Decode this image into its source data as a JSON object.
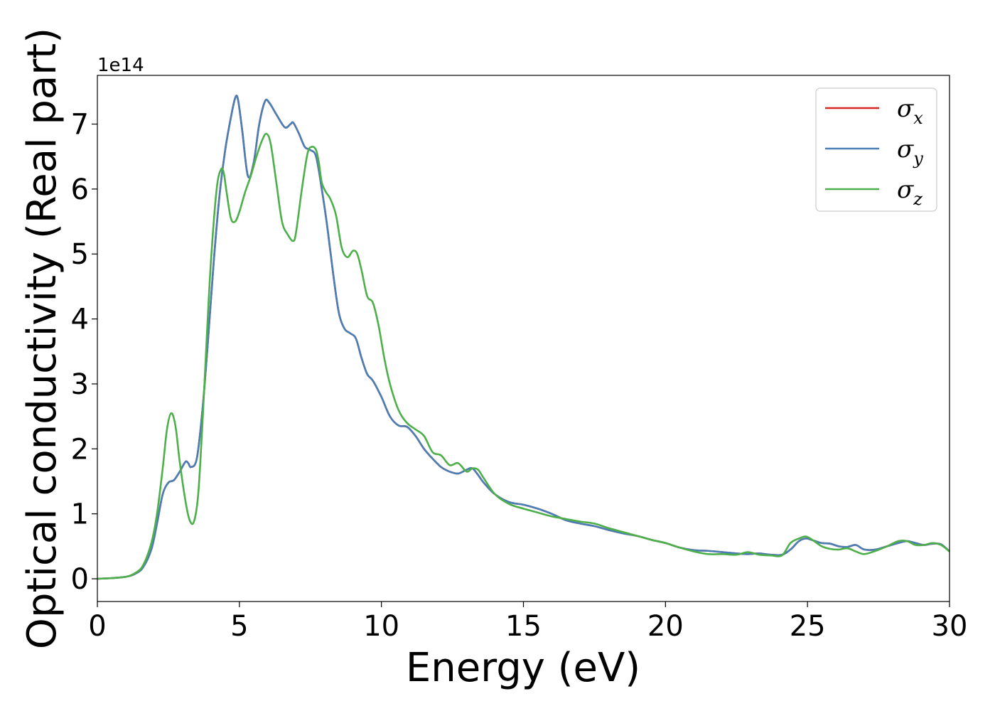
{
  "chart_data": {
    "type": "line",
    "xlabel": "Energy (eV)",
    "ylabel": "Optical conductivity (Real part)",
    "y_offset_label": "1e14",
    "xlim": [
      0,
      30
    ],
    "ylim": [
      -0.35,
      7.75
    ],
    "xticks": [
      0,
      5,
      10,
      15,
      20,
      25,
      30
    ],
    "yticks": [
      0,
      1,
      2,
      3,
      4,
      5,
      6,
      7
    ],
    "grid": false,
    "legend_position": "top-right",
    "series": [
      {
        "name": "σx",
        "symbol": "σ",
        "subscript": "x",
        "color": "#d62728",
        "x": [
          0,
          0.5,
          1.0,
          1.3,
          1.6,
          1.9,
          2.1,
          2.3,
          2.5,
          2.7,
          2.9,
          3.1,
          3.2,
          3.3,
          3.5,
          3.7,
          3.9,
          4.1,
          4.3,
          4.5,
          4.7,
          4.85,
          4.95,
          5.1,
          5.3,
          5.5,
          5.7,
          5.9,
          6.05,
          6.3,
          6.6,
          6.8,
          6.9,
          7.1,
          7.3,
          7.5,
          7.7,
          7.9,
          8.1,
          8.3,
          8.5,
          8.7,
          8.9,
          9.1,
          9.3,
          9.5,
          9.7,
          10.0,
          10.3,
          10.6,
          10.9,
          11.2,
          11.5,
          11.8,
          12.1,
          12.4,
          12.7,
          13.0,
          13.2,
          13.4,
          13.6,
          14.0,
          14.5,
          15.0,
          15.5,
          16.0,
          16.5,
          17.0,
          17.5,
          18.0,
          18.5,
          19.0,
          19.5,
          20.0,
          20.5,
          21.0,
          21.5,
          22.0,
          22.5,
          22.9,
          23.3,
          23.7,
          24.1,
          24.4,
          24.7,
          24.95,
          25.2,
          25.5,
          25.8,
          26.1,
          26.4,
          26.7,
          27.0,
          27.4,
          27.8,
          28.2,
          28.5,
          28.8,
          29.1,
          29.4,
          29.7,
          30.0
        ],
        "values": [
          0,
          0.01,
          0.03,
          0.07,
          0.17,
          0.45,
          0.85,
          1.3,
          1.48,
          1.52,
          1.65,
          1.8,
          1.78,
          1.72,
          1.85,
          2.6,
          3.7,
          4.9,
          5.9,
          6.6,
          7.1,
          7.4,
          7.38,
          6.9,
          6.2,
          6.4,
          7.0,
          7.35,
          7.33,
          7.15,
          6.95,
          7.0,
          7.02,
          6.85,
          6.65,
          6.6,
          6.5,
          6.0,
          5.4,
          4.7,
          4.1,
          3.85,
          3.78,
          3.7,
          3.4,
          3.15,
          3.05,
          2.8,
          2.5,
          2.36,
          2.34,
          2.2,
          2.0,
          1.85,
          1.72,
          1.65,
          1.62,
          1.68,
          1.7,
          1.6,
          1.48,
          1.3,
          1.18,
          1.14,
          1.08,
          1.0,
          0.9,
          0.85,
          0.81,
          0.75,
          0.7,
          0.66,
          0.6,
          0.55,
          0.48,
          0.44,
          0.43,
          0.41,
          0.39,
          0.38,
          0.39,
          0.37,
          0.37,
          0.45,
          0.58,
          0.62,
          0.59,
          0.55,
          0.54,
          0.5,
          0.49,
          0.52,
          0.45,
          0.45,
          0.5,
          0.55,
          0.58,
          0.55,
          0.52,
          0.54,
          0.53,
          0.42
        ]
      },
      {
        "name": "σy",
        "symbol": "σ",
        "subscript": "y",
        "color": "#4a7fb5",
        "x": [
          0,
          0.5,
          1.0,
          1.3,
          1.6,
          1.9,
          2.1,
          2.3,
          2.5,
          2.7,
          2.9,
          3.1,
          3.2,
          3.3,
          3.5,
          3.7,
          3.9,
          4.1,
          4.3,
          4.5,
          4.7,
          4.85,
          4.95,
          5.1,
          5.3,
          5.5,
          5.7,
          5.9,
          6.05,
          6.3,
          6.6,
          6.8,
          6.9,
          7.1,
          7.3,
          7.5,
          7.7,
          7.9,
          8.1,
          8.3,
          8.5,
          8.7,
          8.9,
          9.1,
          9.3,
          9.5,
          9.7,
          10.0,
          10.3,
          10.6,
          10.9,
          11.2,
          11.5,
          11.8,
          12.1,
          12.4,
          12.7,
          13.0,
          13.2,
          13.4,
          13.6,
          14.0,
          14.5,
          15.0,
          15.5,
          16.0,
          16.5,
          17.0,
          17.5,
          18.0,
          18.5,
          19.0,
          19.5,
          20.0,
          20.5,
          21.0,
          21.5,
          22.0,
          22.5,
          22.9,
          23.3,
          23.7,
          24.1,
          24.4,
          24.7,
          24.95,
          25.2,
          25.5,
          25.8,
          26.1,
          26.4,
          26.7,
          27.0,
          27.4,
          27.8,
          28.2,
          28.5,
          28.8,
          29.1,
          29.4,
          29.7,
          30.0
        ],
        "values": [
          0,
          0.01,
          0.03,
          0.07,
          0.17,
          0.45,
          0.85,
          1.3,
          1.48,
          1.52,
          1.65,
          1.8,
          1.78,
          1.72,
          1.85,
          2.6,
          3.7,
          4.9,
          5.9,
          6.6,
          7.1,
          7.4,
          7.38,
          6.9,
          6.2,
          6.4,
          7.0,
          7.35,
          7.33,
          7.15,
          6.95,
          7.0,
          7.02,
          6.85,
          6.65,
          6.6,
          6.5,
          6.0,
          5.4,
          4.7,
          4.1,
          3.85,
          3.78,
          3.7,
          3.4,
          3.15,
          3.05,
          2.8,
          2.5,
          2.36,
          2.34,
          2.2,
          2.0,
          1.85,
          1.72,
          1.65,
          1.62,
          1.68,
          1.7,
          1.6,
          1.48,
          1.3,
          1.18,
          1.14,
          1.08,
          1.0,
          0.9,
          0.85,
          0.81,
          0.75,
          0.7,
          0.66,
          0.6,
          0.55,
          0.48,
          0.44,
          0.43,
          0.41,
          0.39,
          0.38,
          0.39,
          0.37,
          0.37,
          0.45,
          0.58,
          0.62,
          0.59,
          0.55,
          0.54,
          0.5,
          0.49,
          0.52,
          0.45,
          0.45,
          0.5,
          0.55,
          0.58,
          0.55,
          0.52,
          0.54,
          0.53,
          0.42
        ]
      },
      {
        "name": "σz",
        "symbol": "σ",
        "subscript": "z",
        "color": "#4daf4a",
        "x": [
          0,
          0.5,
          1.0,
          1.3,
          1.6,
          1.9,
          2.1,
          2.3,
          2.45,
          2.6,
          2.75,
          2.9,
          3.1,
          3.25,
          3.4,
          3.55,
          3.7,
          3.85,
          4.0,
          4.2,
          4.35,
          4.45,
          4.55,
          4.7,
          4.85,
          5.0,
          5.2,
          5.4,
          5.6,
          5.8,
          5.95,
          6.1,
          6.3,
          6.5,
          6.7,
          6.9,
          7.0,
          7.2,
          7.4,
          7.55,
          7.7,
          7.8,
          7.9,
          8.05,
          8.2,
          8.4,
          8.6,
          8.8,
          9.0,
          9.15,
          9.3,
          9.5,
          9.7,
          9.9,
          10.1,
          10.3,
          10.6,
          10.9,
          11.2,
          11.5,
          11.8,
          12.1,
          12.4,
          12.7,
          13.0,
          13.2,
          13.4,
          13.6,
          14.0,
          14.5,
          15.0,
          15.5,
          16.0,
          16.5,
          17.0,
          17.5,
          18.0,
          18.5,
          19.0,
          19.5,
          20.0,
          20.5,
          21.0,
          21.5,
          22.0,
          22.5,
          22.9,
          23.3,
          23.7,
          24.1,
          24.4,
          24.7,
          24.95,
          25.2,
          25.5,
          25.8,
          26.1,
          26.4,
          26.7,
          27.0,
          27.4,
          27.8,
          28.2,
          28.5,
          28.8,
          29.1,
          29.4,
          29.7,
          30.0
        ],
        "values": [
          0,
          0.01,
          0.03,
          0.08,
          0.2,
          0.55,
          1.0,
          1.7,
          2.3,
          2.55,
          2.35,
          1.8,
          1.2,
          0.9,
          0.88,
          1.3,
          2.4,
          3.7,
          4.9,
          6.0,
          6.3,
          6.25,
          5.95,
          5.55,
          5.5,
          5.65,
          5.95,
          6.2,
          6.5,
          6.75,
          6.85,
          6.7,
          6.1,
          5.5,
          5.3,
          5.2,
          5.35,
          6.0,
          6.55,
          6.65,
          6.6,
          6.4,
          6.1,
          5.95,
          5.85,
          5.6,
          5.1,
          4.95,
          5.05,
          5.0,
          4.75,
          4.35,
          4.25,
          3.9,
          3.4,
          3.0,
          2.6,
          2.4,
          2.3,
          2.2,
          1.95,
          1.9,
          1.75,
          1.78,
          1.65,
          1.7,
          1.68,
          1.55,
          1.3,
          1.15,
          1.08,
          1.02,
          0.96,
          0.92,
          0.88,
          0.85,
          0.78,
          0.72,
          0.66,
          0.6,
          0.55,
          0.48,
          0.42,
          0.38,
          0.38,
          0.37,
          0.41,
          0.37,
          0.36,
          0.36,
          0.55,
          0.62,
          0.65,
          0.59,
          0.5,
          0.46,
          0.45,
          0.47,
          0.42,
          0.38,
          0.43,
          0.5,
          0.58,
          0.58,
          0.52,
          0.52,
          0.55,
          0.52,
          0.42
        ]
      }
    ]
  }
}
